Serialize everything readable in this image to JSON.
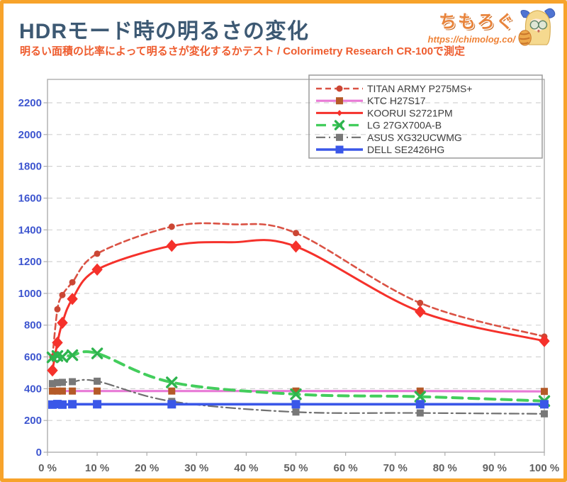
{
  "header": {
    "title": "HDRモード時の明るさの変化",
    "subtitle": "明るい面積の比率によって明るさが変化するかテスト / Colorimetry Research CR-100で測定",
    "logo_text": "ちもろぐ",
    "logo_url": "https://chimolog.co/"
  },
  "colors": {
    "frame_border": "#f7a32b",
    "title": "#3d5973",
    "subtitle": "#ee5c2e",
    "y_tick_label": "#3d55cf",
    "x_tick_label": "#616161",
    "gridline": "#d2d2d2",
    "plot_frame": "#adadad",
    "legend_border": "#9b9b9b",
    "legend_text": "#3b3b3b"
  },
  "chart_data": {
    "type": "line",
    "title": "HDRモード時の明るさの変化",
    "xlabel": "",
    "ylabel": "",
    "x_unit": "% (bright window area ratio)",
    "y_unit": "brightness (cd/m2)",
    "xlim": [
      0,
      100
    ],
    "ylim": [
      0,
      2340
    ],
    "grid": "horizontal-dashed",
    "legend_position": "top-right-inside",
    "x_ticks": [
      0,
      10,
      20,
      30,
      40,
      50,
      60,
      70,
      80,
      90,
      100
    ],
    "x_tick_labels": [
      "0 %",
      "10 %",
      "20 %",
      "30 %",
      "40 %",
      "50 %",
      "60 %",
      "70 %",
      "80 %",
      "90 %",
      "100 %"
    ],
    "y_ticks": [
      0,
      200,
      400,
      600,
      800,
      1000,
      1200,
      1400,
      1600,
      1800,
      2000,
      2200
    ],
    "y_tick_labels": [
      "0",
      "200",
      "400",
      "600",
      "800",
      "1000",
      "1200",
      "1400",
      "1600",
      "1800",
      "2000",
      "2200"
    ],
    "series": [
      {
        "name": "TITAN ARMY P275MS+",
        "color": "#da5244",
        "marker_color": "#cb4634",
        "style": "dashed",
        "dash": "8 5",
        "width": 2.6,
        "marker": "circle",
        "marker_size": 9,
        "smooth": true,
        "points": [
          [
            1,
            600
          ],
          [
            2,
            900
          ],
          [
            3,
            990
          ],
          [
            5,
            1070
          ],
          [
            10,
            1250
          ],
          [
            25,
            1420
          ],
          [
            37,
            1435,
            0
          ],
          [
            50,
            1380
          ],
          [
            75,
            940
          ],
          [
            100,
            728
          ]
        ]
      },
      {
        "name": "KTC H27S17",
        "color": "#e87ad6",
        "marker_color": "#b45a28",
        "style": "solid",
        "dash": "",
        "width": 3.2,
        "marker": "square",
        "marker_size": 10,
        "smooth": false,
        "points": [
          [
            1,
            385
          ],
          [
            2,
            385
          ],
          [
            3,
            385
          ],
          [
            5,
            385
          ],
          [
            10,
            385
          ],
          [
            25,
            385
          ],
          [
            50,
            385
          ],
          [
            75,
            385
          ],
          [
            100,
            383
          ]
        ]
      },
      {
        "name": "KOORUI S2721PM",
        "color": "#f5312b",
        "marker_color": "#f5312b",
        "style": "solid",
        "dash": "",
        "width": 3,
        "marker": "diamond",
        "marker_size": 14,
        "smooth": true,
        "points": [
          [
            1,
            515
          ],
          [
            2,
            690
          ],
          [
            3,
            815
          ],
          [
            5,
            965
          ],
          [
            10,
            1150
          ],
          [
            25,
            1300
          ],
          [
            37,
            1322,
            0
          ],
          [
            50,
            1295
          ],
          [
            75,
            885
          ],
          [
            100,
            700
          ]
        ]
      },
      {
        "name": "LG 27GX700A-B",
        "color": "#43cd5c",
        "marker_color": "#2eb44e",
        "style": "long-dash",
        "dash": "14 9",
        "width": 4,
        "marker": "x",
        "marker_size": 13,
        "smooth": true,
        "points": [
          [
            1,
            597
          ],
          [
            2,
            606
          ],
          [
            3,
            600
          ],
          [
            5,
            611
          ],
          [
            10,
            622
          ],
          [
            25,
            440
          ],
          [
            50,
            365
          ],
          [
            75,
            350
          ],
          [
            100,
            322
          ]
        ]
      },
      {
        "name": "ASUS XG32UCWMG",
        "color": "#6f6f6f",
        "marker_color": "#787878",
        "style": "dash-dot",
        "dash": "13 5 2 5",
        "width": 2.2,
        "marker": "square",
        "marker_size": 10,
        "smooth": true,
        "points": [
          [
            1,
            432
          ],
          [
            2,
            438
          ],
          [
            3,
            440
          ],
          [
            5,
            444
          ],
          [
            10,
            447
          ],
          [
            25,
            320
          ],
          [
            50,
            253
          ],
          [
            75,
            247
          ],
          [
            100,
            242
          ]
        ]
      },
      {
        "name": "DELL SE2426HG",
        "color": "#3a57e8",
        "marker_color": "#3a57e8",
        "style": "solid",
        "dash": "",
        "width": 3.6,
        "marker": "square",
        "marker_size": 12,
        "smooth": false,
        "points": [
          [
            1,
            300
          ],
          [
            2,
            303
          ],
          [
            3,
            300
          ],
          [
            5,
            302
          ],
          [
            10,
            302
          ],
          [
            25,
            302
          ],
          [
            50,
            302
          ],
          [
            75,
            302
          ],
          [
            100,
            302
          ]
        ]
      }
    ]
  }
}
